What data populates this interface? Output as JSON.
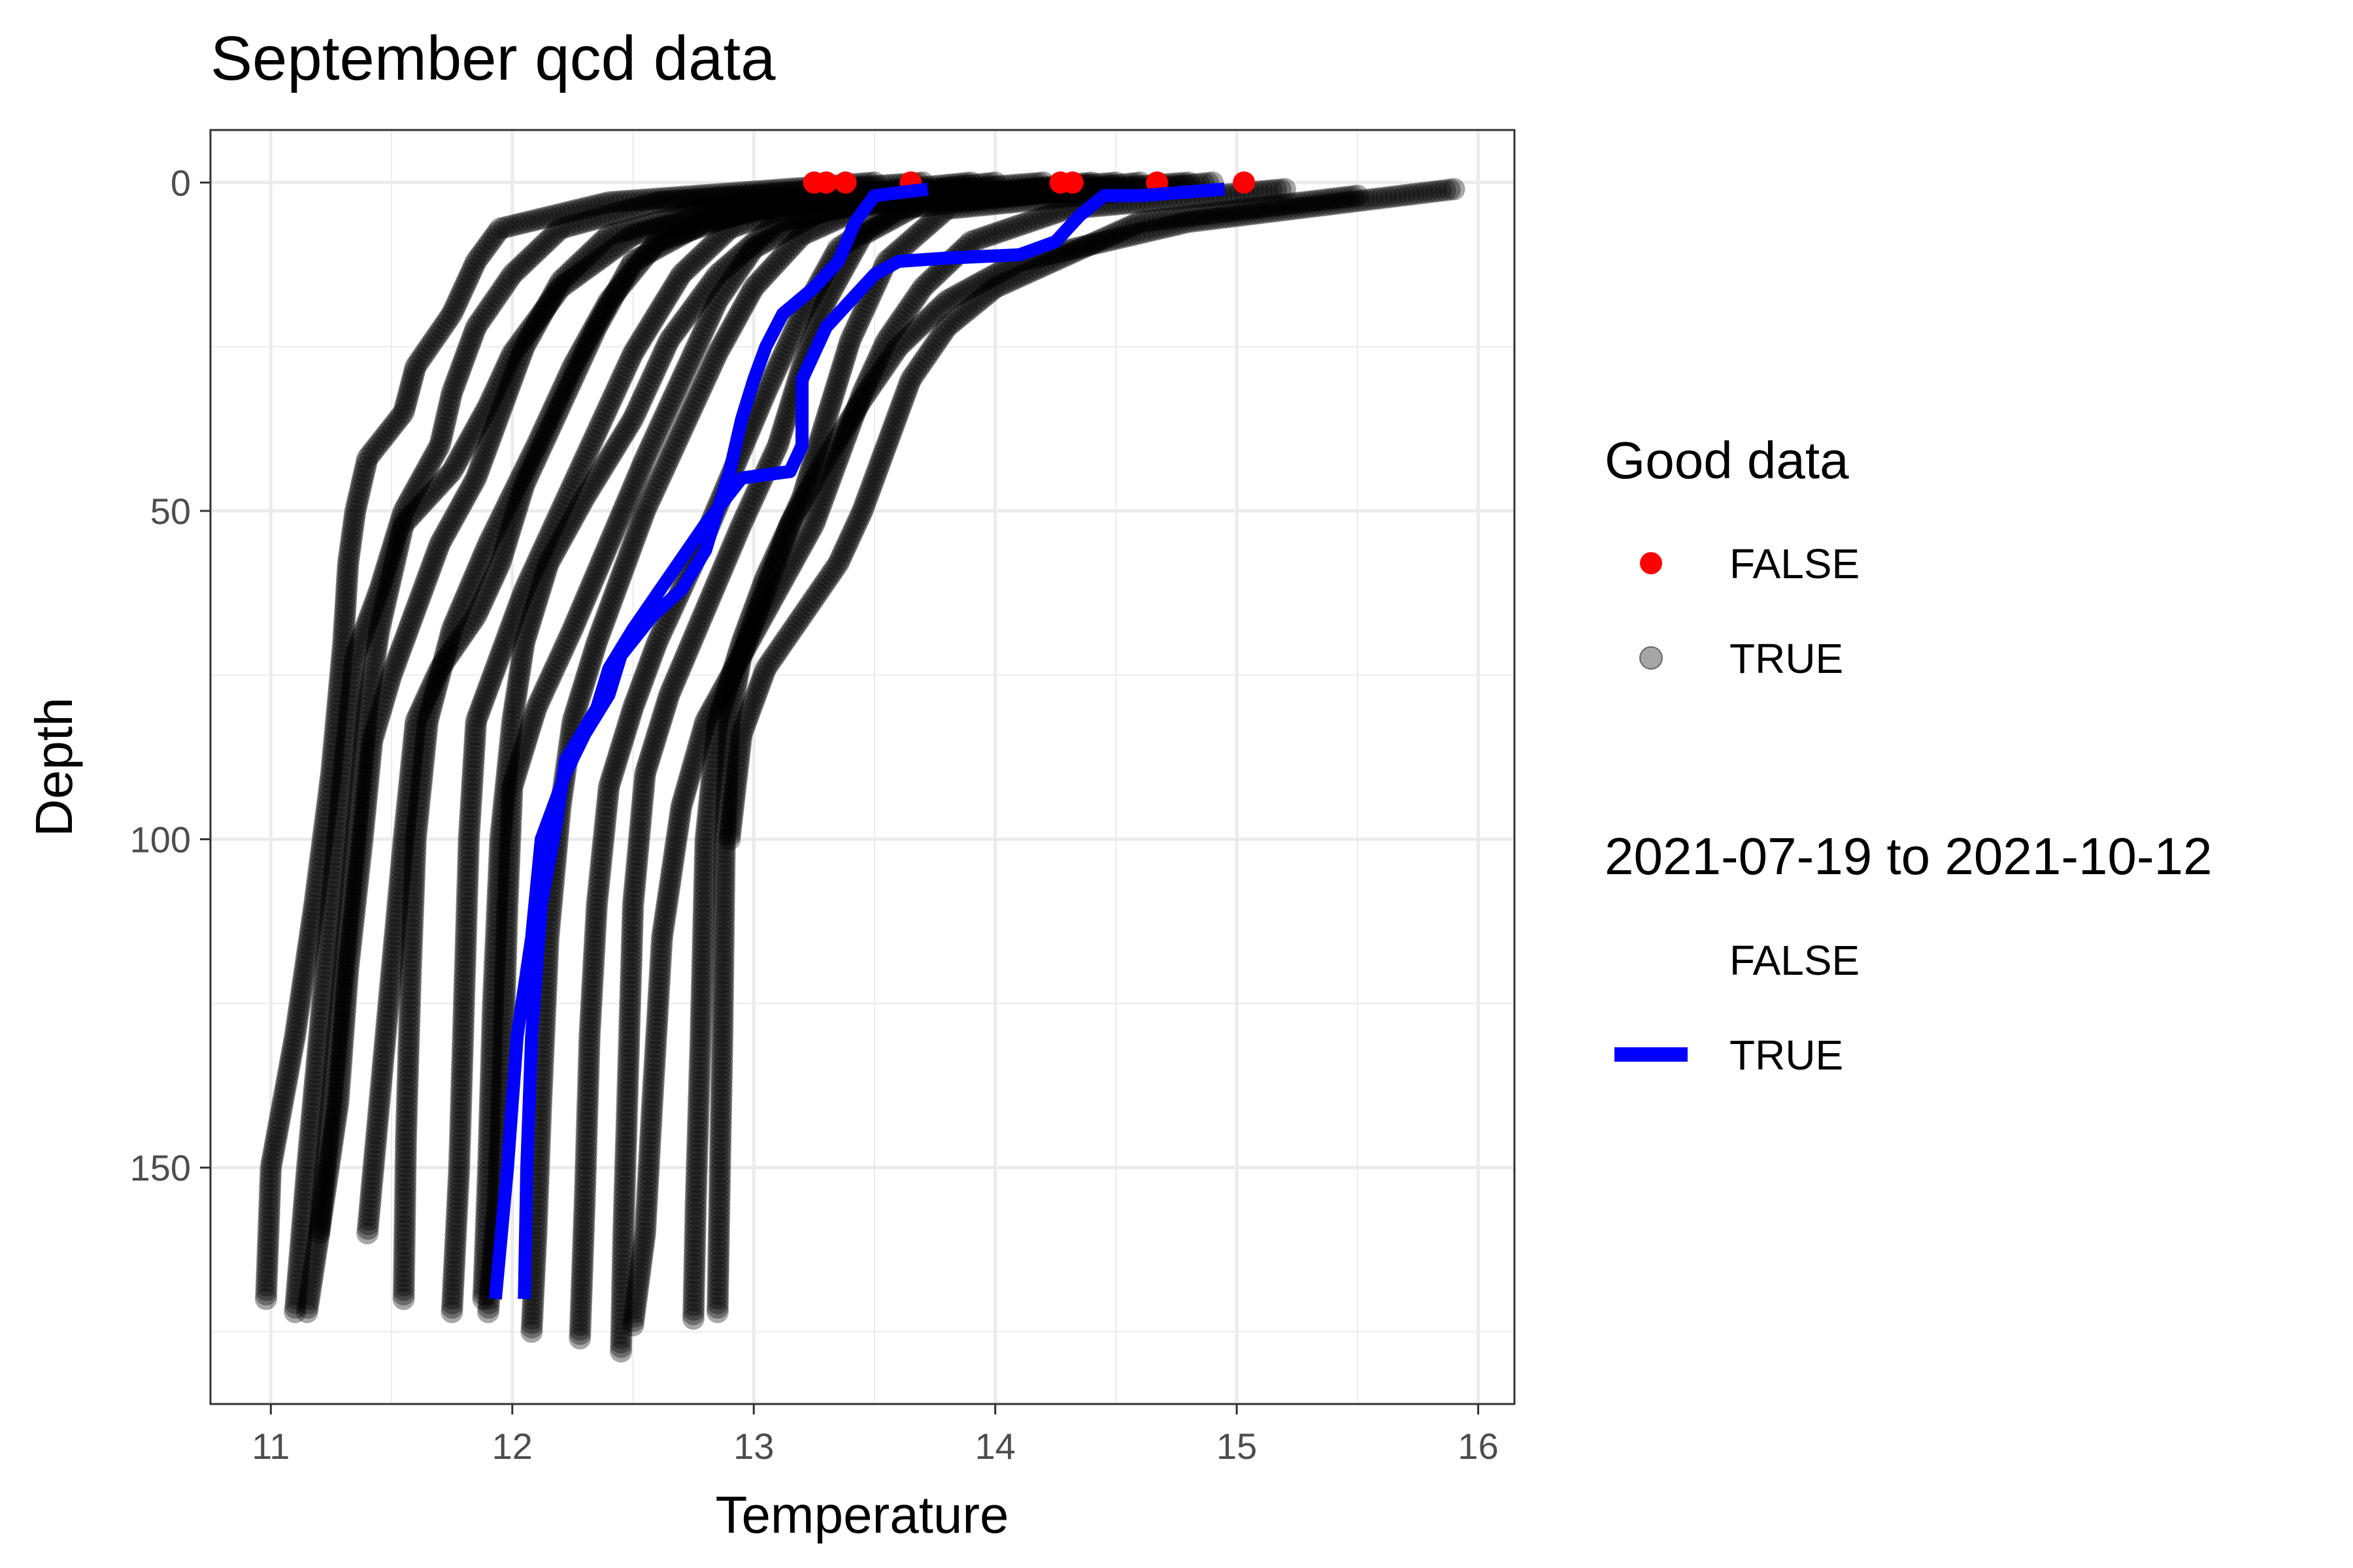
{
  "chart_data": {
    "type": "scatter",
    "title": "September qcd data",
    "xlabel": "Temperature",
    "ylabel": "Depth",
    "xlim": [
      10.75,
      16.15
    ],
    "ylim": [
      -8,
      186
    ],
    "y_reversed": true,
    "x_ticks": [
      11,
      12,
      13,
      14,
      15,
      16
    ],
    "y_ticks": [
      0,
      50,
      100,
      150
    ],
    "grid": true,
    "legend_position": "right",
    "colors": {
      "good_false": "#ff0000",
      "good_true": "#000000",
      "window_true": "#0000ff",
      "grid": "#ebebeb",
      "panel_border": "#333333"
    },
    "legends": [
      {
        "title": "Good data",
        "entries": [
          {
            "label": "FALSE",
            "kind": "point",
            "color": "#ff0000"
          },
          {
            "label": "TRUE",
            "kind": "point",
            "color": "#000000",
            "alpha": 0.35
          }
        ]
      },
      {
        "title": "2021-07-19 to 2021-10-12",
        "entries": [
          {
            "label": "FALSE",
            "kind": "none",
            "color": ""
          },
          {
            "label": "TRUE",
            "kind": "line",
            "color": "#0000ff"
          }
        ]
      }
    ],
    "profiles": [
      {
        "name": "",
        "points": [
          [
            13.5,
            0
          ],
          [
            12.4,
            3
          ],
          [
            11.95,
            7
          ],
          [
            11.85,
            12
          ],
          [
            11.75,
            20
          ],
          [
            11.6,
            28
          ],
          [
            11.55,
            35
          ],
          [
            11.4,
            42
          ],
          [
            11.35,
            50
          ],
          [
            11.32,
            58
          ],
          [
            11.3,
            70
          ],
          [
            11.25,
            90
          ],
          [
            11.18,
            110
          ],
          [
            11.1,
            130
          ],
          [
            11.0,
            150
          ],
          [
            10.98,
            170
          ]
        ]
      },
      {
        "name": "",
        "points": [
          [
            13.7,
            0
          ],
          [
            12.6,
            3
          ],
          [
            12.2,
            7
          ],
          [
            12.0,
            14
          ],
          [
            11.85,
            22
          ],
          [
            11.75,
            32
          ],
          [
            11.7,
            40
          ],
          [
            11.55,
            50
          ],
          [
            11.45,
            62
          ],
          [
            11.35,
            72
          ],
          [
            11.3,
            90
          ],
          [
            11.25,
            110
          ],
          [
            11.2,
            130
          ],
          [
            11.15,
            150
          ],
          [
            11.1,
            172
          ]
        ]
      },
      {
        "name": "",
        "points": [
          [
            13.9,
            0
          ],
          [
            12.8,
            4
          ],
          [
            12.4,
            8
          ],
          [
            12.2,
            15
          ],
          [
            12.05,
            25
          ],
          [
            11.95,
            35
          ],
          [
            11.85,
            45
          ],
          [
            11.7,
            55
          ],
          [
            11.6,
            65
          ],
          [
            11.5,
            75
          ],
          [
            11.42,
            85
          ],
          [
            11.38,
            100
          ],
          [
            11.32,
            120
          ],
          [
            11.28,
            140
          ],
          [
            11.2,
            160
          ],
          [
            11.15,
            172
          ]
        ]
      },
      {
        "name": "",
        "points": [
          [
            14.0,
            0
          ],
          [
            13.0,
            4
          ],
          [
            12.6,
            9
          ],
          [
            12.4,
            18
          ],
          [
            12.25,
            28
          ],
          [
            12.1,
            40
          ],
          [
            11.9,
            55
          ],
          [
            11.75,
            68
          ],
          [
            11.65,
            82
          ],
          [
            11.6,
            100
          ],
          [
            11.58,
            120
          ],
          [
            11.56,
            145
          ],
          [
            11.55,
            170
          ]
        ]
      },
      {
        "name": "",
        "points": [
          [
            14.2,
            0
          ],
          [
            13.2,
            3
          ],
          [
            12.9,
            7
          ],
          [
            12.7,
            14
          ],
          [
            12.5,
            26
          ],
          [
            12.35,
            38
          ],
          [
            12.2,
            50
          ],
          [
            12.05,
            62
          ],
          [
            11.95,
            72
          ],
          [
            11.85,
            82
          ],
          [
            11.82,
            100
          ],
          [
            11.8,
            125
          ],
          [
            11.78,
            150
          ],
          [
            11.75,
            172
          ]
        ]
      },
      {
        "name": "",
        "points": [
          [
            14.4,
            0
          ],
          [
            13.3,
            4
          ],
          [
            13.0,
            10
          ],
          [
            12.85,
            18
          ],
          [
            12.7,
            30
          ],
          [
            12.55,
            42
          ],
          [
            12.4,
            55
          ],
          [
            12.25,
            68
          ],
          [
            12.1,
            80
          ],
          [
            12.0,
            92
          ],
          [
            11.98,
            110
          ],
          [
            11.96,
            135
          ],
          [
            11.94,
            155
          ],
          [
            11.9,
            172
          ]
        ]
      },
      {
        "name": "",
        "points": [
          [
            14.5,
            0
          ],
          [
            13.5,
            3
          ],
          [
            13.2,
            8
          ],
          [
            13.0,
            16
          ],
          [
            12.85,
            26
          ],
          [
            12.7,
            38
          ],
          [
            12.55,
            50
          ],
          [
            12.45,
            60
          ],
          [
            12.35,
            70
          ],
          [
            12.25,
            82
          ],
          [
            12.2,
            95
          ],
          [
            12.15,
            115
          ],
          [
            12.12,
            140
          ],
          [
            12.1,
            160
          ],
          [
            12.08,
            175
          ]
        ]
      },
      {
        "name": "",
        "points": [
          [
            14.6,
            0
          ],
          [
            13.6,
            4
          ],
          [
            13.35,
            10
          ],
          [
            13.2,
            20
          ],
          [
            13.05,
            32
          ],
          [
            12.9,
            45
          ],
          [
            12.75,
            58
          ],
          [
            12.6,
            70
          ],
          [
            12.5,
            80
          ],
          [
            12.4,
            92
          ],
          [
            12.35,
            110
          ],
          [
            12.32,
            130
          ],
          [
            12.3,
            155
          ],
          [
            12.28,
            176
          ]
        ]
      },
      {
        "name": "",
        "points": [
          [
            14.8,
            0
          ],
          [
            13.7,
            3
          ],
          [
            13.45,
            8
          ],
          [
            13.3,
            18
          ],
          [
            13.2,
            28
          ],
          [
            13.1,
            40
          ],
          [
            12.95,
            52
          ],
          [
            12.8,
            65
          ],
          [
            12.65,
            78
          ],
          [
            12.55,
            90
          ],
          [
            12.5,
            110
          ],
          [
            12.48,
            135
          ],
          [
            12.46,
            160
          ],
          [
            12.45,
            178
          ]
        ]
      },
      {
        "name": "",
        "points": [
          [
            14.9,
            0
          ],
          [
            13.8,
            4
          ],
          [
            13.55,
            12
          ],
          [
            13.4,
            24
          ],
          [
            13.3,
            36
          ],
          [
            13.2,
            48
          ],
          [
            13.05,
            60
          ],
          [
            12.95,
            70
          ],
          [
            12.85,
            82
          ],
          [
            12.8,
            100
          ],
          [
            12.78,
            130
          ],
          [
            12.76,
            155
          ],
          [
            12.75,
            173
          ]
        ]
      },
      {
        "name": "",
        "points": [
          [
            15.9,
            1
          ],
          [
            14.8,
            6
          ],
          [
            14.1,
            12
          ],
          [
            13.8,
            18
          ],
          [
            13.6,
            25
          ],
          [
            13.45,
            33
          ],
          [
            13.3,
            42
          ],
          [
            13.15,
            52
          ],
          [
            13.05,
            62
          ],
          [
            12.95,
            72
          ],
          [
            12.9,
            82
          ],
          [
            12.88,
            100
          ],
          [
            12.87,
            130
          ],
          [
            12.86,
            150
          ],
          [
            12.85,
            172
          ]
        ]
      },
      {
        "name": "",
        "points": [
          [
            15.2,
            1
          ],
          [
            14.3,
            4
          ],
          [
            13.9,
            9
          ],
          [
            13.7,
            16
          ],
          [
            13.55,
            24
          ],
          [
            13.45,
            32
          ],
          [
            13.35,
            42
          ],
          [
            13.25,
            52
          ],
          [
            13.1,
            62
          ],
          [
            12.95,
            72
          ],
          [
            12.8,
            82
          ],
          [
            12.7,
            95
          ],
          [
            12.62,
            115
          ],
          [
            12.58,
            140
          ],
          [
            12.55,
            160
          ],
          [
            12.5,
            174
          ]
        ]
      },
      {
        "name": "",
        "points": [
          [
            15.5,
            2
          ],
          [
            14.6,
            6
          ],
          [
            14.3,
            11
          ],
          [
            14.0,
            16
          ],
          [
            13.8,
            22
          ],
          [
            13.65,
            30
          ],
          [
            13.55,
            40
          ],
          [
            13.45,
            50
          ],
          [
            13.35,
            58
          ],
          [
            13.2,
            66
          ],
          [
            13.05,
            74
          ],
          [
            12.95,
            84
          ],
          [
            12.9,
            100
          ]
        ]
      },
      {
        "name": "",
        "points": [
          [
            13.0,
            3
          ],
          [
            12.5,
            8
          ],
          [
            12.2,
            16
          ],
          [
            12.0,
            26
          ],
          [
            11.9,
            34
          ],
          [
            11.75,
            44
          ],
          [
            11.55,
            52
          ],
          [
            11.5,
            60
          ],
          [
            11.45,
            68
          ],
          [
            11.4,
            80
          ],
          [
            11.35,
            100
          ],
          [
            11.3,
            120
          ],
          [
            11.25,
            140
          ],
          [
            11.2,
            160
          ]
        ]
      },
      {
        "name": "",
        "points": [
          [
            13.3,
            2
          ],
          [
            12.8,
            6
          ],
          [
            12.5,
            12
          ],
          [
            12.35,
            22
          ],
          [
            12.2,
            34
          ],
          [
            12.05,
            46
          ],
          [
            11.95,
            58
          ],
          [
            11.85,
            66
          ],
          [
            11.7,
            74
          ],
          [
            11.6,
            82
          ],
          [
            11.55,
            100
          ],
          [
            11.5,
            120
          ],
          [
            11.45,
            140
          ],
          [
            11.4,
            160
          ]
        ]
      },
      {
        "name": "",
        "points": [
          [
            13.6,
            2
          ],
          [
            13.1,
            6
          ],
          [
            12.85,
            14
          ],
          [
            12.65,
            24
          ],
          [
            12.5,
            36
          ],
          [
            12.3,
            48
          ],
          [
            12.15,
            58
          ],
          [
            12.05,
            70
          ],
          [
            12.0,
            82
          ],
          [
            11.95,
            100
          ],
          [
            11.92,
            125
          ],
          [
            11.9,
            150
          ],
          [
            11.88,
            170
          ]
        ]
      }
    ],
    "qc_false_points": [
      {
        "x": 13.25,
        "y": 0
      },
      {
        "x": 13.3,
        "y": 0
      },
      {
        "x": 13.38,
        "y": 0
      },
      {
        "x": 13.65,
        "y": 0
      },
      {
        "x": 14.27,
        "y": 0
      },
      {
        "x": 14.32,
        "y": 0
      },
      {
        "x": 14.67,
        "y": 0
      },
      {
        "x": 15.03,
        "y": 0
      }
    ],
    "highlighted_profiles": [
      {
        "name": "",
        "points": [
          [
            14.95,
            1
          ],
          [
            14.6,
            2
          ],
          [
            14.45,
            2
          ],
          [
            14.35,
            5
          ],
          [
            14.25,
            9
          ],
          [
            14.1,
            11
          ],
          [
            13.8,
            11.5
          ],
          [
            13.6,
            12
          ],
          [
            13.5,
            14
          ],
          [
            13.4,
            18
          ],
          [
            13.3,
            22
          ],
          [
            13.25,
            26
          ],
          [
            13.2,
            30
          ],
          [
            13.2,
            40
          ],
          [
            13.15,
            44
          ],
          [
            12.95,
            45
          ],
          [
            12.8,
            52
          ],
          [
            12.65,
            60
          ],
          [
            12.5,
            68
          ],
          [
            12.4,
            74
          ],
          [
            12.35,
            80
          ],
          [
            12.22,
            88
          ],
          [
            12.18,
            98
          ],
          [
            12.12,
            110
          ],
          [
            12.08,
            130
          ],
          [
            12.06,
            150
          ],
          [
            12.05,
            170
          ]
        ]
      },
      {
        "name": "",
        "points": [
          [
            13.72,
            1
          ],
          [
            13.5,
            2
          ],
          [
            13.42,
            6
          ],
          [
            13.35,
            12
          ],
          [
            13.25,
            16
          ],
          [
            13.12,
            20
          ],
          [
            13.05,
            25
          ],
          [
            13.0,
            30
          ],
          [
            12.95,
            36
          ],
          [
            12.9,
            44
          ],
          [
            12.85,
            50
          ],
          [
            12.8,
            56
          ],
          [
            12.7,
            62
          ],
          [
            12.58,
            66
          ],
          [
            12.45,
            72
          ],
          [
            12.4,
            78
          ],
          [
            12.3,
            84
          ],
          [
            12.22,
            90
          ],
          [
            12.12,
            100
          ],
          [
            12.08,
            115
          ],
          [
            12.02,
            130
          ],
          [
            11.98,
            150
          ],
          [
            11.93,
            170
          ]
        ]
      }
    ]
  }
}
